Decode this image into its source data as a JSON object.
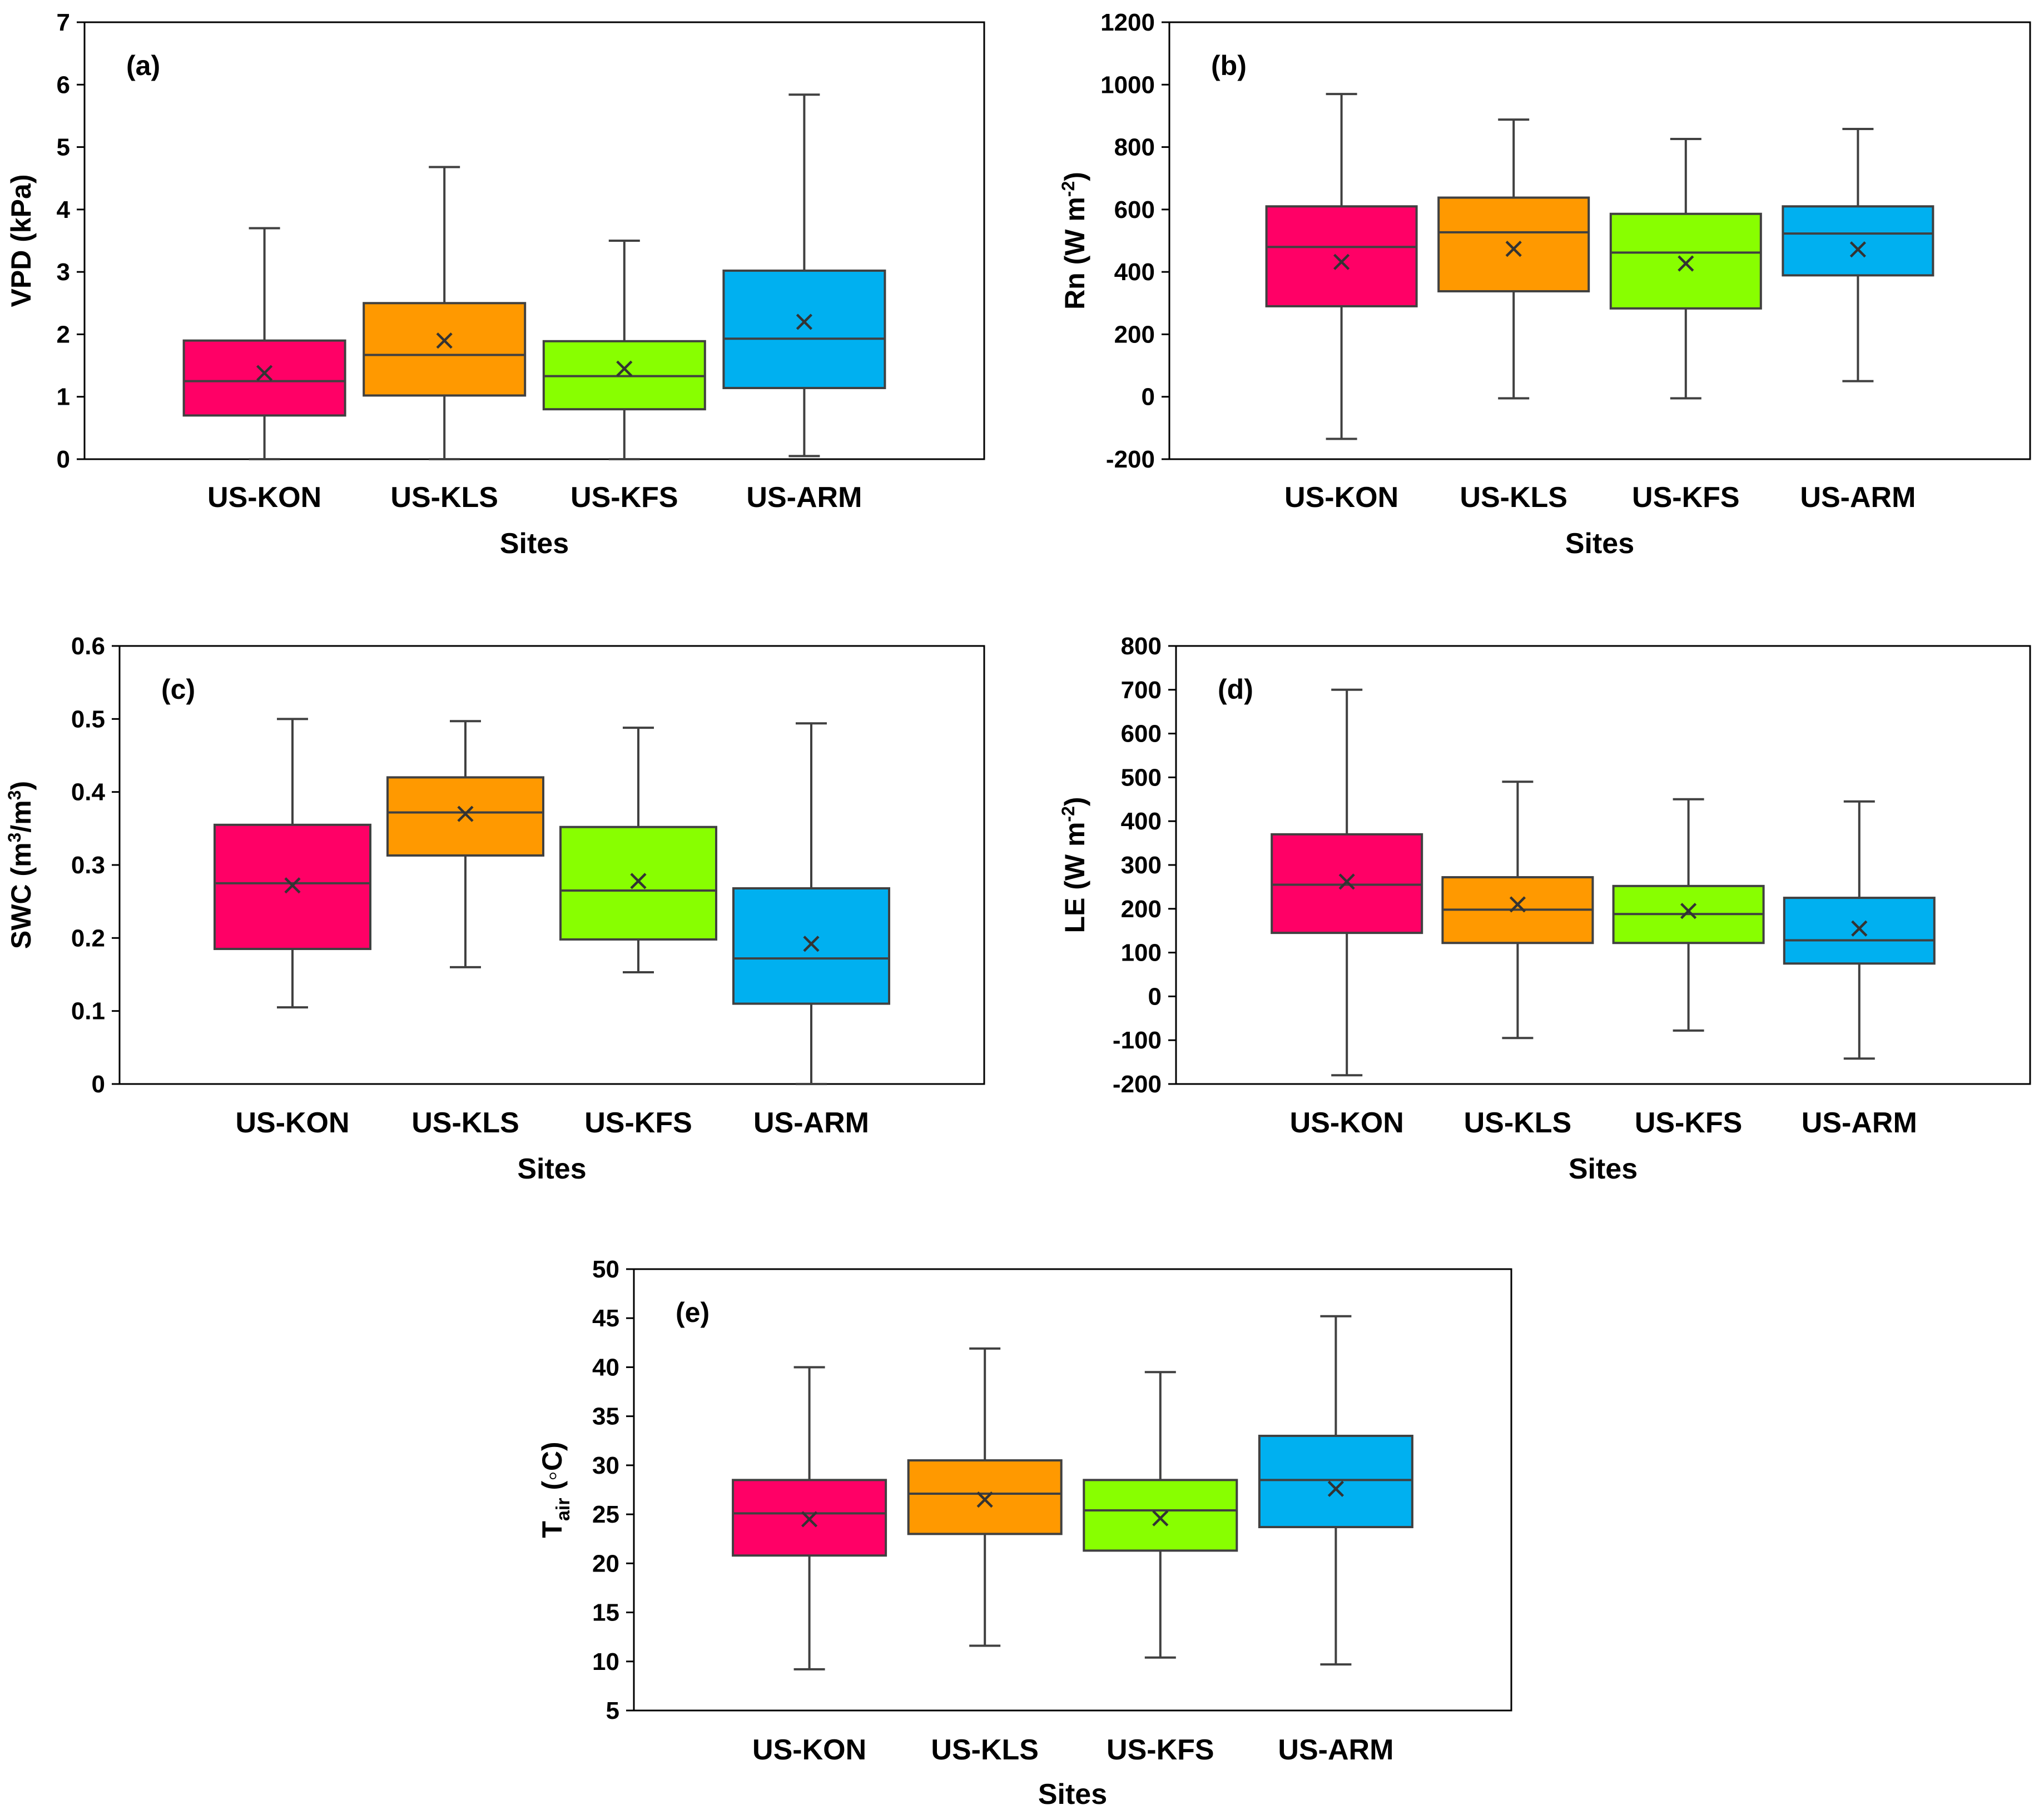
{
  "chart_data": [
    {
      "type": "box",
      "panel_label": "(a)",
      "title": "",
      "xlabel": "Sites",
      "ylabel": "VPD (kPa)",
      "ylim": [
        0,
        7
      ],
      "yticks": [
        0,
        1,
        2,
        3,
        4,
        5,
        6,
        7
      ],
      "categories": [
        "US-KON",
        "US-KLS",
        "US-KFS",
        "US-ARM"
      ],
      "colors": [
        "#ff0066",
        "#ff9900",
        "#88ff00",
        "#00b0f0"
      ],
      "boxes": [
        {
          "min": 0.0,
          "q1": 0.7,
          "median": 1.25,
          "q3": 1.9,
          "max": 3.7,
          "mean": 1.38
        },
        {
          "min": 0.0,
          "q1": 1.02,
          "median": 1.67,
          "q3": 2.5,
          "max": 4.68,
          "mean": 1.9
        },
        {
          "min": 0.0,
          "q1": 0.8,
          "median": 1.33,
          "q3": 1.89,
          "max": 3.5,
          "mean": 1.45
        },
        {
          "min": 0.05,
          "q1": 1.14,
          "median": 1.93,
          "q3": 3.02,
          "max": 5.84,
          "mean": 2.2
        }
      ]
    },
    {
      "type": "box",
      "panel_label": "(b)",
      "title": "",
      "xlabel": "Sites",
      "ylabel": "Rn (W m",
      "ylabel_sup": "-2",
      "ylabel_end": ")",
      "ylim": [
        -200,
        1200
      ],
      "yticks": [
        -200,
        0,
        200,
        400,
        600,
        800,
        1000,
        1200
      ],
      "categories": [
        "US-KON",
        "US-KLS",
        "US-KFS",
        "US-ARM"
      ],
      "colors": [
        "#ff0066",
        "#ff9900",
        "#88ff00",
        "#00b0f0"
      ],
      "boxes": [
        {
          "min": -135,
          "q1": 290,
          "median": 480,
          "q3": 610,
          "max": 970,
          "mean": 432
        },
        {
          "min": -5,
          "q1": 338,
          "median": 527,
          "q3": 638,
          "max": 888,
          "mean": 474
        },
        {
          "min": -5,
          "q1": 283,
          "median": 462,
          "q3": 586,
          "max": 826,
          "mean": 427
        },
        {
          "min": 50,
          "q1": 389,
          "median": 523,
          "q3": 610,
          "max": 858,
          "mean": 472
        }
      ]
    },
    {
      "type": "box",
      "panel_label": "(c)",
      "title": "",
      "xlabel": "Sites",
      "ylabel": "SWC (m",
      "ylabel_sup": "3",
      "ylabel_mid": "/m",
      "ylabel_sup2": "3",
      "ylabel_end": ")",
      "ylim": [
        0,
        0.6
      ],
      "yticks": [
        0,
        0.1,
        0.2,
        0.3,
        0.4,
        0.5,
        0.6
      ],
      "categories": [
        "US-KON",
        "US-KLS",
        "US-KFS",
        "US-ARM"
      ],
      "colors": [
        "#ff0066",
        "#ff9900",
        "#88ff00",
        "#00b0f0"
      ],
      "boxes": [
        {
          "min": 0.105,
          "q1": 0.185,
          "median": 0.275,
          "q3": 0.355,
          "max": 0.5,
          "mean": 0.272
        },
        {
          "min": 0.16,
          "q1": 0.313,
          "median": 0.372,
          "q3": 0.42,
          "max": 0.497,
          "mean": 0.37
        },
        {
          "min": 0.153,
          "q1": 0.198,
          "median": 0.265,
          "q3": 0.352,
          "max": 0.488,
          "mean": 0.278
        },
        {
          "min": 0.0,
          "q1": 0.11,
          "median": 0.172,
          "q3": 0.268,
          "max": 0.494,
          "mean": 0.192
        }
      ]
    },
    {
      "type": "box",
      "panel_label": "(d)",
      "title": "",
      "xlabel": "Sites",
      "ylabel": "LE (W m",
      "ylabel_sup": "-2",
      "ylabel_end": ")",
      "ylim": [
        -200,
        800
      ],
      "yticks": [
        -200,
        -100,
        0,
        100,
        200,
        300,
        400,
        500,
        600,
        700,
        800
      ],
      "categories": [
        "US-KON",
        "US-KLS",
        "US-KFS",
        "US-ARM"
      ],
      "colors": [
        "#ff0066",
        "#ff9900",
        "#88ff00",
        "#00b0f0"
      ],
      "boxes": [
        {
          "min": -180,
          "q1": 145,
          "median": 255,
          "q3": 370,
          "max": 700,
          "mean": 262
        },
        {
          "min": -95,
          "q1": 122,
          "median": 198,
          "q3": 272,
          "max": 490,
          "mean": 210
        },
        {
          "min": -78,
          "q1": 122,
          "median": 188,
          "q3": 252,
          "max": 450,
          "mean": 195
        },
        {
          "min": -142,
          "q1": 75,
          "median": 128,
          "q3": 225,
          "max": 445,
          "mean": 155
        }
      ]
    },
    {
      "type": "box",
      "panel_label": "(e)",
      "title": "",
      "xlabel": "Sites",
      "ylabel": "T",
      "ylabel_sub": "air",
      "ylabel_end": " (◦C)",
      "ylim": [
        5,
        50
      ],
      "yticks": [
        5,
        10,
        15,
        20,
        25,
        30,
        35,
        40,
        45,
        50
      ],
      "categories": [
        "US-KON",
        "US-KLS",
        "US-KFS",
        "US-ARM"
      ],
      "colors": [
        "#ff0066",
        "#ff9900",
        "#88ff00",
        "#00b0f0"
      ],
      "boxes": [
        {
          "min": 9.2,
          "q1": 20.8,
          "median": 25.1,
          "q3": 28.5,
          "max": 40.0,
          "mean": 24.5
        },
        {
          "min": 11.6,
          "q1": 23.0,
          "median": 27.1,
          "q3": 30.5,
          "max": 41.9,
          "mean": 26.5
        },
        {
          "min": 10.4,
          "q1": 21.3,
          "median": 25.4,
          "q3": 28.5,
          "max": 39.5,
          "mean": 24.6
        },
        {
          "min": 9.7,
          "q1": 23.7,
          "median": 28.5,
          "q3": 33.0,
          "max": 45.2,
          "mean": 27.6
        }
      ]
    }
  ]
}
